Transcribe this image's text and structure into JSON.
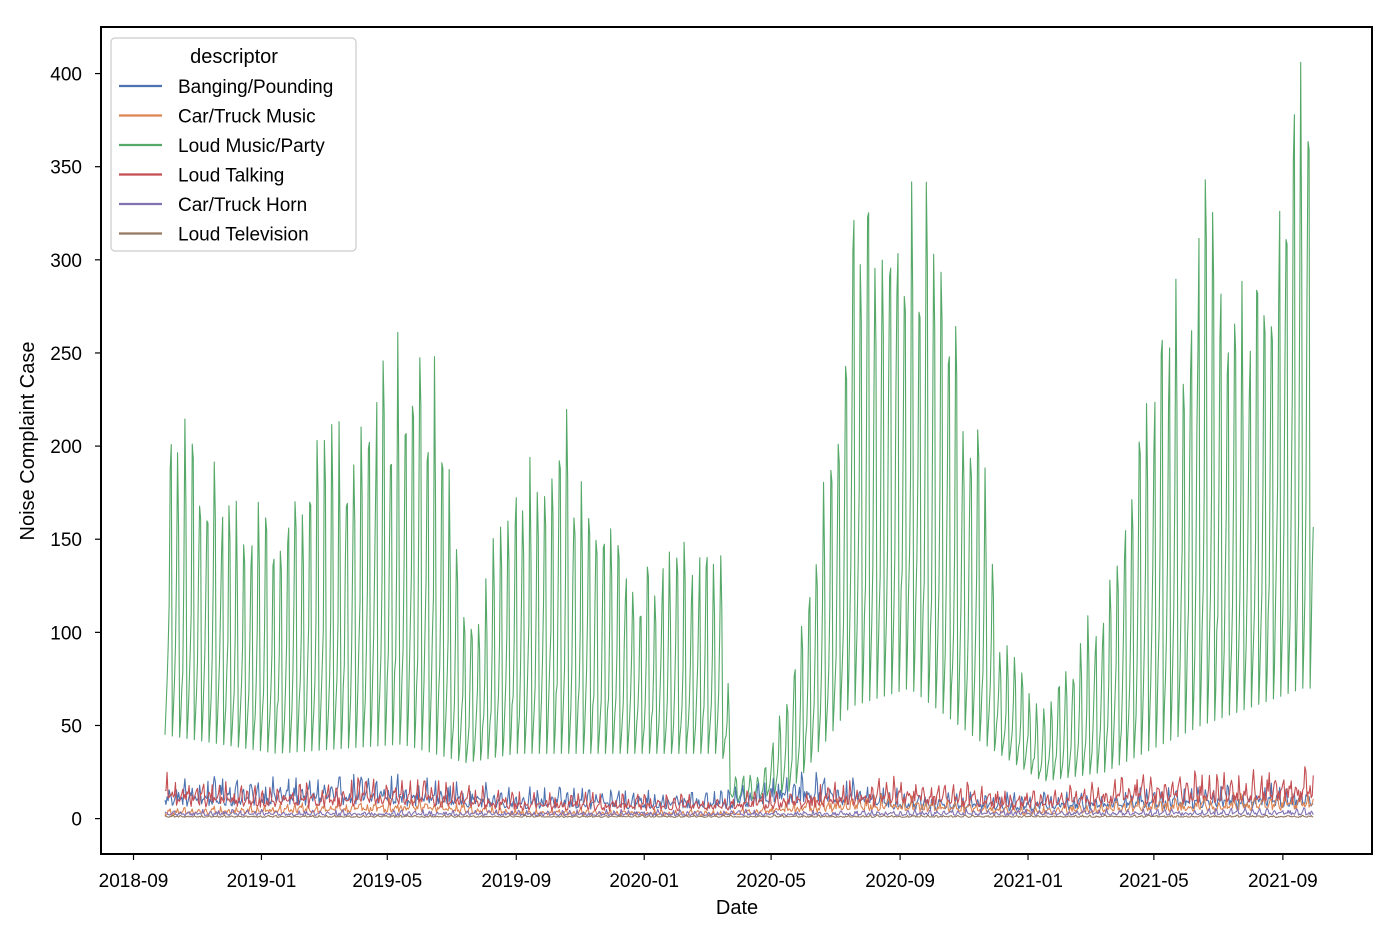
{
  "chart_data": {
    "type": "line",
    "xlabel": "Date",
    "ylabel": "Noise Complaint Case",
    "x_range": [
      "2018-08-01",
      "2021-11-25"
    ],
    "ylim": [
      -19,
      425
    ],
    "x_ticks": [
      "2018-09",
      "2019-01",
      "2019-05",
      "2019-09",
      "2020-01",
      "2020-05",
      "2020-09",
      "2021-01",
      "2021-05",
      "2021-09"
    ],
    "y_ticks": [
      0,
      50,
      100,
      150,
      200,
      250,
      300,
      350,
      400
    ],
    "grid": false,
    "legend": {
      "title": "descriptor",
      "placement": "top-left"
    },
    "data_start": "2018-10-01",
    "data_end": "2021-09-30",
    "series": [
      {
        "name": "Banging/Pounding",
        "color": "#4c72b0",
        "weekly_peak_keypoints": [
          [
            "2018-10-01",
            22
          ],
          [
            "2019-05-01",
            25
          ],
          [
            "2019-09-01",
            18
          ],
          [
            "2020-03-15",
            16
          ],
          [
            "2020-06-01",
            28
          ],
          [
            "2020-09-01",
            16
          ],
          [
            "2021-01-01",
            14
          ],
          [
            "2021-05-01",
            18
          ],
          [
            "2021-09-30",
            20
          ]
        ]
      },
      {
        "name": "Car/Truck Music",
        "color": "#dd8452",
        "weekly_peak_keypoints": [
          [
            "2018-10-01",
            6
          ],
          [
            "2019-06-01",
            12
          ],
          [
            "2019-09-01",
            6
          ],
          [
            "2020-03-15",
            5
          ],
          [
            "2020-07-15",
            14
          ],
          [
            "2020-09-01",
            14
          ],
          [
            "2021-01-01",
            7
          ],
          [
            "2021-05-01",
            12
          ],
          [
            "2021-09-30",
            16
          ]
        ]
      },
      {
        "name": "Loud Music/Party",
        "color": "#55a868",
        "weekly_peak_keypoints": [
          [
            "2018-10-01",
            200
          ],
          [
            "2018-12-01",
            160
          ],
          [
            "2019-01-15",
            150
          ],
          [
            "2019-05-15",
            230
          ],
          [
            "2019-06-15",
            225
          ],
          [
            "2019-07-15",
            95
          ],
          [
            "2019-09-01",
            165
          ],
          [
            "2019-10-20",
            190
          ],
          [
            "2019-12-15",
            125
          ],
          [
            "2020-03-15",
            135
          ],
          [
            "2020-03-25",
            25
          ],
          [
            "2020-04-20",
            20
          ],
          [
            "2020-05-20",
            70
          ],
          [
            "2020-07-01",
            190
          ],
          [
            "2020-07-15",
            300
          ],
          [
            "2020-09-10",
            330
          ],
          [
            "2020-10-20",
            250
          ],
          [
            "2020-11-20",
            180
          ],
          [
            "2020-12-05",
            90
          ],
          [
            "2021-01-15",
            55
          ],
          [
            "2021-03-15",
            110
          ],
          [
            "2021-05-01",
            230
          ],
          [
            "2021-06-15",
            300
          ],
          [
            "2021-08-01",
            250
          ],
          [
            "2021-09-20",
            390
          ]
        ],
        "weekly_trough_keypoints": [
          [
            "2018-10-01",
            45
          ],
          [
            "2019-01-15",
            35
          ],
          [
            "2019-05-15",
            40
          ],
          [
            "2019-07-15",
            30
          ],
          [
            "2019-09-01",
            35
          ],
          [
            "2020-03-15",
            35
          ],
          [
            "2020-03-25",
            8
          ],
          [
            "2020-05-20",
            15
          ],
          [
            "2020-07-15",
            60
          ],
          [
            "2020-09-10",
            70
          ],
          [
            "2020-11-20",
            40
          ],
          [
            "2021-01-15",
            20
          ],
          [
            "2021-03-15",
            25
          ],
          [
            "2021-06-15",
            50
          ],
          [
            "2021-09-20",
            70
          ]
        ]
      },
      {
        "name": "Loud Talking",
        "color": "#c44e52",
        "weekly_peak_keypoints": [
          [
            "2018-10-01",
            25
          ],
          [
            "2019-01-01",
            18
          ],
          [
            "2019-05-15",
            24
          ],
          [
            "2019-09-01",
            15
          ],
          [
            "2020-03-15",
            14
          ],
          [
            "2020-07-01",
            20
          ],
          [
            "2020-09-15",
            24
          ],
          [
            "2021-01-01",
            16
          ],
          [
            "2021-05-01",
            26
          ],
          [
            "2021-09-30",
            28
          ]
        ]
      },
      {
        "name": "Car/Truck Horn",
        "color": "#8172b3",
        "weekly_peak_keypoints": [
          [
            "2018-10-01",
            5
          ],
          [
            "2019-05-01",
            5
          ],
          [
            "2020-06-01",
            5
          ],
          [
            "2021-09-30",
            6
          ]
        ]
      },
      {
        "name": "Loud Television",
        "color": "#937860",
        "weekly_peak_keypoints": [
          [
            "2018-10-01",
            2
          ],
          [
            "2019-05-01",
            2
          ],
          [
            "2020-06-01",
            2
          ],
          [
            "2021-09-30",
            2
          ]
        ]
      }
    ]
  }
}
